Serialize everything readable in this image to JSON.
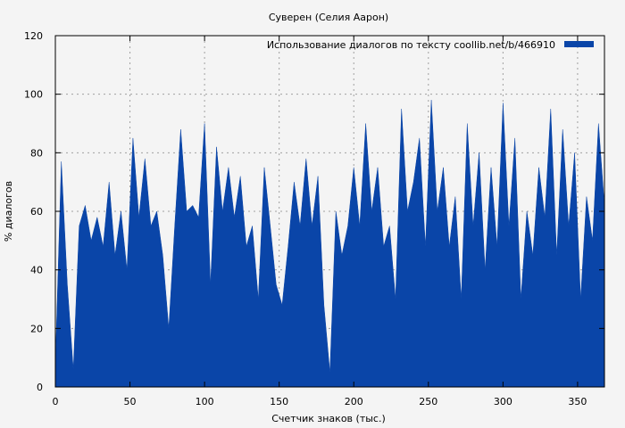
{
  "chart_data": {
    "type": "area",
    "title": "Суверен (Селия Аарон)",
    "xlabel": "Счетчик знаков (тыс.)",
    "ylabel": "% диалогов",
    "xlim": [
      0,
      368
    ],
    "ylim": [
      0,
      120
    ],
    "xticks": [
      0,
      50,
      100,
      150,
      200,
      250,
      300,
      350
    ],
    "yticks": [
      0,
      20,
      40,
      60,
      80,
      100,
      120
    ],
    "grid": true,
    "legend_position": "top-right",
    "series": [
      {
        "name": "Использование диалогов по тексту  coollib.net/b/466910",
        "color": "#0a45a8",
        "x": [
          0,
          4,
          8,
          12,
          16,
          20,
          24,
          28,
          32,
          36,
          40,
          44,
          48,
          52,
          56,
          60,
          64,
          68,
          72,
          76,
          80,
          84,
          88,
          92,
          96,
          100,
          104,
          108,
          112,
          116,
          120,
          124,
          128,
          132,
          136,
          140,
          144,
          148,
          152,
          156,
          160,
          164,
          168,
          172,
          176,
          180,
          184,
          188,
          192,
          196,
          200,
          204,
          208,
          212,
          216,
          220,
          224,
          228,
          232,
          236,
          240,
          244,
          248,
          252,
          256,
          260,
          264,
          268,
          272,
          276,
          280,
          284,
          288,
          292,
          296,
          300,
          304,
          308,
          312,
          316,
          320,
          324,
          328,
          332,
          336,
          340,
          344,
          348,
          352,
          356,
          360,
          364,
          368
        ],
        "values": [
          8,
          77,
          35,
          6,
          55,
          62,
          50,
          58,
          48,
          70,
          45,
          60,
          40,
          85,
          58,
          78,
          55,
          60,
          45,
          20,
          55,
          88,
          60,
          62,
          58,
          90,
          35,
          82,
          60,
          75,
          58,
          72,
          48,
          55,
          30,
          75,
          55,
          35,
          28,
          48,
          70,
          55,
          78,
          55,
          72,
          28,
          5,
          60,
          45,
          55,
          75,
          55,
          90,
          60,
          75,
          48,
          55,
          30,
          95,
          60,
          70,
          85,
          48,
          98,
          60,
          75,
          48,
          65,
          30,
          90,
          55,
          80,
          40,
          75,
          48,
          97,
          55,
          85,
          30,
          60,
          45,
          75,
          58,
          95,
          45,
          88,
          55,
          80,
          30,
          65,
          50,
          90,
          62
        ]
      }
    ]
  }
}
